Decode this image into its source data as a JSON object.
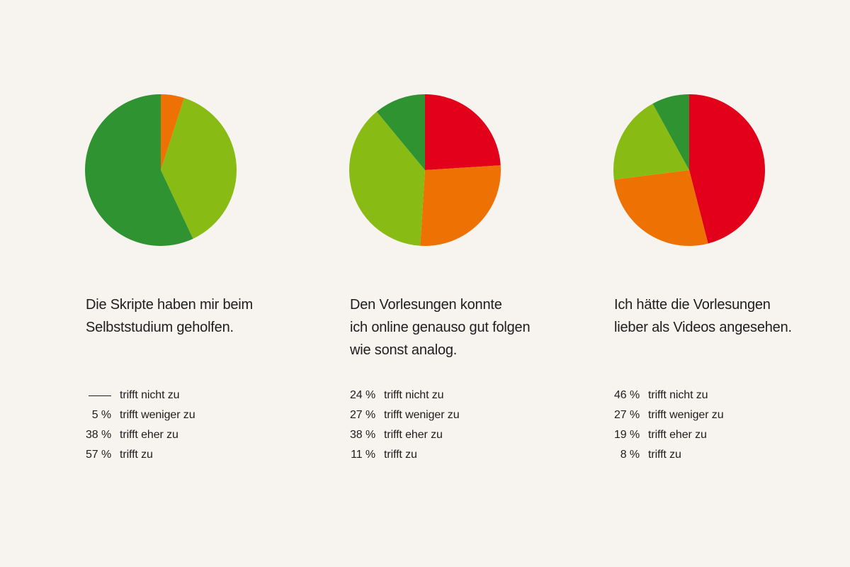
{
  "colors": {
    "trifft_nicht_zu": "#e2001a",
    "trifft_weniger_zu": "#ee7203",
    "trifft_eher_zu": "#89bb15",
    "trifft_zu": "#2f9331",
    "background": "#f7f3ee",
    "text": "#1e1e1e"
  },
  "chart_data": [
    {
      "type": "pie",
      "title_lines": [
        "Die Skripte haben mir beim",
        "Selbststudium geholfen."
      ],
      "categories": [
        "trifft nicht zu",
        "trifft weniger zu",
        "trifft eher zu",
        "trifft zu"
      ],
      "values": [
        0,
        5,
        38,
        57
      ],
      "value_labels": [
        "",
        "5 %",
        "38 %",
        "57 %"
      ],
      "unit": "%",
      "start_angle_deg": 0,
      "direction": "clockwise"
    },
    {
      "type": "pie",
      "title_lines": [
        "Den Vorlesungen konnte",
        "ich online genauso gut folgen",
        "wie sonst analog."
      ],
      "categories": [
        "trifft nicht zu",
        "trifft weniger zu",
        "trifft eher zu",
        "trifft zu"
      ],
      "values": [
        24,
        27,
        38,
        11
      ],
      "value_labels": [
        "24 %",
        "27 %",
        "38 %",
        "11 %"
      ],
      "unit": "%",
      "start_angle_deg": 0,
      "direction": "clockwise"
    },
    {
      "type": "pie",
      "title_lines": [
        "Ich hätte die Vorlesungen",
        "lieber als Videos angesehen."
      ],
      "categories": [
        "trifft nicht zu",
        "trifft weniger zu",
        "trifft eher zu",
        "trifft zu"
      ],
      "values": [
        46,
        27,
        19,
        8
      ],
      "value_labels": [
        "46 %",
        "27 %",
        "19 %",
        "8 %"
      ],
      "unit": "%",
      "start_angle_deg": 0,
      "direction": "clockwise"
    }
  ]
}
